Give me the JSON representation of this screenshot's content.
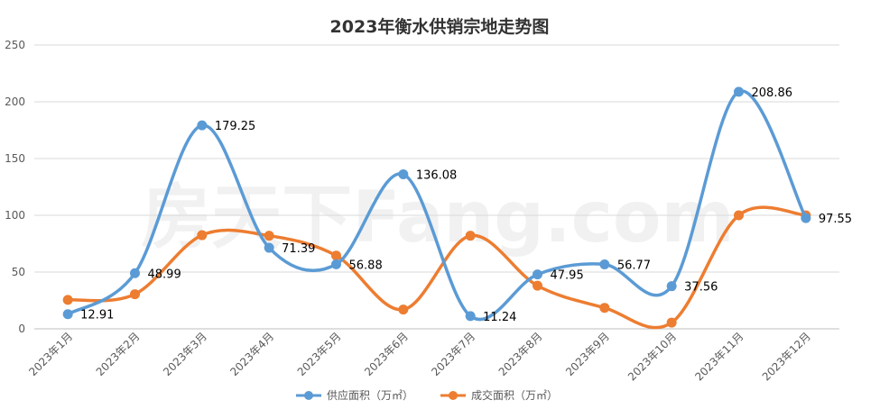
{
  "chart_data": {
    "type": "line",
    "title": "2023年衡水供销宗地走势图",
    "categories": [
      "2023年1月",
      "2023年2月",
      "2023年3月",
      "2023年4月",
      "2023年5月",
      "2023年6月",
      "2023年7月",
      "2023年8月",
      "2023年9月",
      "2023年10月",
      "2023年11月",
      "2023年12月"
    ],
    "y_ticks": [
      "0",
      "50",
      "100",
      "150",
      "200",
      "250"
    ],
    "ylim": [
      0,
      250
    ],
    "grid": true,
    "legend_position": "bottom",
    "watermark": "房天下Fang.com",
    "series": [
      {
        "name": "供应面积（万㎡）",
        "color": "#5B9BD5",
        "values": [
          12.91,
          48.99,
          179.25,
          71.39,
          56.88,
          136.08,
          11.24,
          47.95,
          56.77,
          37.56,
          208.86,
          97.55
        ],
        "labels": [
          "12.91",
          "48.99",
          "179.25",
          "71.39",
          "56.88",
          "136.08",
          "11.24",
          "47.95",
          "56.77",
          "37.56",
          "208.86",
          "97.55"
        ]
      },
      {
        "name": "成交面积（万㎡）",
        "color": "#ED7D31",
        "values": [
          25.5,
          30.5,
          82.5,
          82.0,
          64.5,
          17.0,
          82.0,
          38.0,
          18.5,
          5.5,
          100.0,
          100.0
        ]
      }
    ]
  }
}
